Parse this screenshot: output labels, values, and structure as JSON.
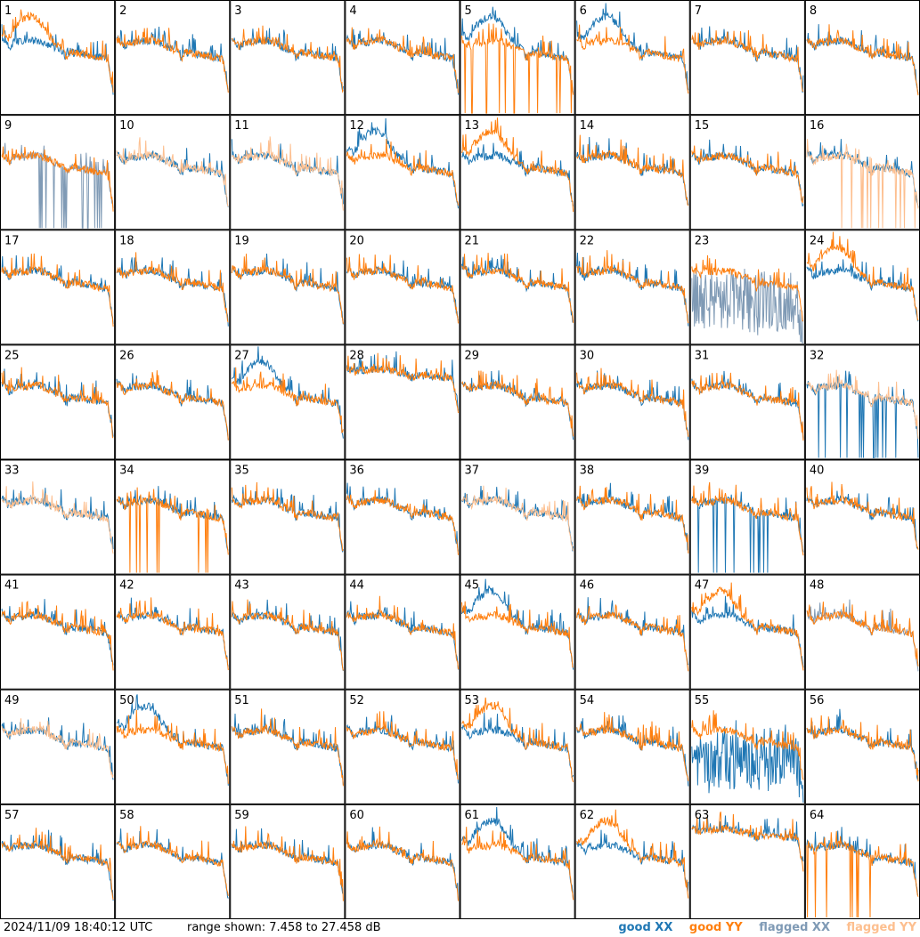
{
  "chart_data": {
    "type": "line",
    "layout": "small-multiples 8x8",
    "panels": [
      "1",
      "2",
      "3",
      "4",
      "5",
      "6",
      "7",
      "8",
      "9",
      "10",
      "11",
      "12",
      "13",
      "14",
      "15",
      "16",
      "17",
      "18",
      "19",
      "20",
      "21",
      "22",
      "23",
      "24",
      "25",
      "26",
      "27",
      "28",
      "29",
      "30",
      "31",
      "32",
      "33",
      "34",
      "35",
      "36",
      "37",
      "38",
      "39",
      "40",
      "41",
      "42",
      "43",
      "44",
      "45",
      "46",
      "47",
      "48",
      "49",
      "50",
      "51",
      "52",
      "53",
      "54",
      "55",
      "56",
      "57",
      "58",
      "59",
      "60",
      "61",
      "62",
      "63",
      "64"
    ],
    "ylim": [
      7.458,
      27.458
    ],
    "yunit": "dB",
    "grid": false,
    "legend_position": "bottom-right",
    "series": [
      {
        "name": "good XX",
        "color": "#1f77b4"
      },
      {
        "name": "good YY",
        "color": "#ff7f0e"
      },
      {
        "name": "flagged XX",
        "color": "#7f9ab5"
      },
      {
        "name": "flagged YY",
        "color": "#fdbf8f"
      }
    ],
    "panel_status": {
      "xx_flagged": [
        "9",
        "23",
        "48"
      ],
      "yy_flagged": [
        "10",
        "11",
        "16",
        "32",
        "33",
        "37",
        "49"
      ]
    },
    "panel_profiles": {
      "1": {
        "xx": "normal",
        "yy": "sag"
      },
      "5": {
        "xx": "sag",
        "yy": "spike"
      },
      "6": {
        "xx": "sag",
        "yy": "normal"
      },
      "9": {
        "xx": "spike",
        "yy": "normal"
      },
      "12": {
        "xx": "sag",
        "yy": "normal"
      },
      "13": {
        "xx": "normal",
        "yy": "sag"
      },
      "16": {
        "xx": "normal",
        "yy": "spike"
      },
      "23": {
        "xx": "noisy",
        "yy": "normal"
      },
      "24": {
        "xx": "normal",
        "yy": "sag"
      },
      "25": {
        "xx": "normal",
        "yy": "normal"
      },
      "27": {
        "xx": "sag",
        "yy": "normal"
      },
      "28": {
        "xx": "high",
        "yy": "high"
      },
      "32": {
        "xx": "spike",
        "yy": "normal"
      },
      "34": {
        "xx": "normal",
        "yy": "spike"
      },
      "39": {
        "xx": "spike",
        "yy": "normal"
      },
      "45": {
        "xx": "sag",
        "yy": "normal"
      },
      "47": {
        "xx": "normal",
        "yy": "sag"
      },
      "50": {
        "xx": "sag",
        "yy": "normal"
      },
      "53": {
        "xx": "normal",
        "yy": "sag"
      },
      "55": {
        "xx": "noisy",
        "yy": "normal"
      },
      "56": {
        "xx": "normal",
        "yy": "normal"
      },
      "61": {
        "xx": "sag",
        "yy": "normal"
      },
      "62": {
        "xx": "normal",
        "yy": "sag"
      },
      "63": {
        "xx": "high",
        "yy": "high"
      },
      "64": {
        "xx": "normal",
        "yy": "spike"
      }
    }
  },
  "footer": {
    "timestamp": "2024/11/09 18:40:12 UTC",
    "range_text": "range shown: 7.458 to 27.458 dB",
    "legend": {
      "good_xx": "good XX",
      "good_yy": "good YY",
      "flagged_xx": "flagged XX",
      "flagged_yy": "flagged YY"
    },
    "colors": {
      "good_xx": "#1f77b4",
      "good_yy": "#ff7f0e",
      "flagged_xx": "#7f9ab5",
      "flagged_yy": "#fdbf8f"
    }
  }
}
